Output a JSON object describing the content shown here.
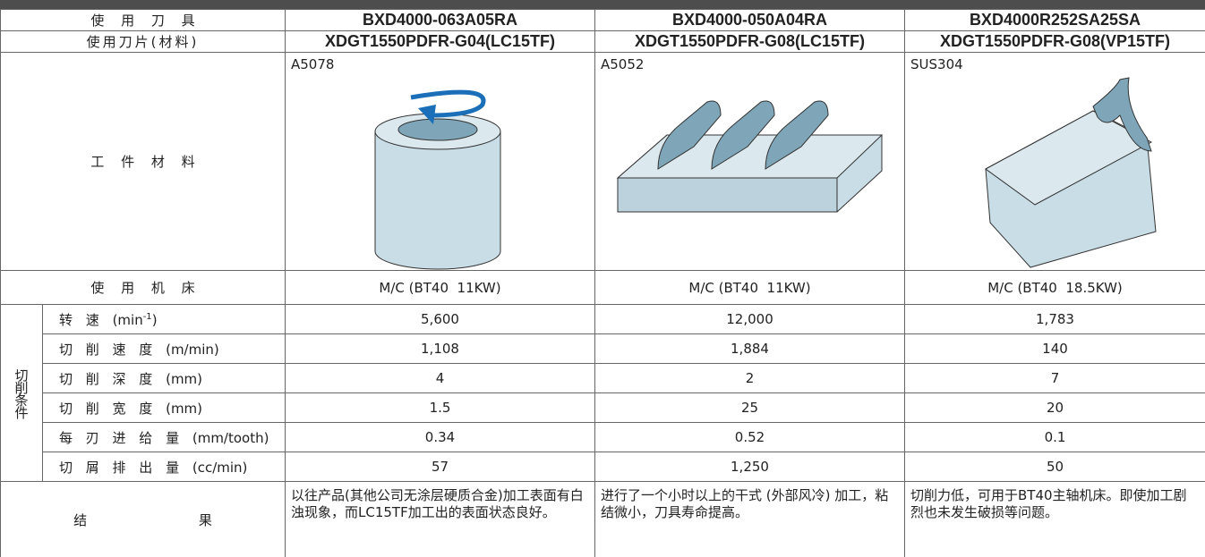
{
  "header": {
    "label": "使 用 刀 具",
    "tools": [
      "BXD4000-063A05RA",
      "BXD4000-050A04RA",
      "BXD4000R252SA25SA"
    ]
  },
  "inserts": {
    "label": "使用刀片(材料)",
    "values": [
      "XDGT1550PDFR-G04(LC15TF)",
      "XDGT1550PDFR-G08(LC15TF)",
      "XDGT1550PDFR-G08(VP15TF)"
    ]
  },
  "workpiece": {
    "label": "工 件 材 料",
    "materials": [
      "A5078",
      "A5052",
      "SUS304"
    ]
  },
  "machine": {
    "label": "使 用 机 床",
    "values": [
      "M/C (BT40  11KW)",
      "M/C (BT40  11KW)",
      "M/C (BT40  18.5KW)"
    ]
  },
  "conditions": {
    "group_label": "切削条件",
    "rows": [
      {
        "label": "转 速",
        "unit": "(min",
        "unit_sup": "-1",
        "unit_end": ")",
        "values": [
          "5,600",
          "12,000",
          "1,783"
        ]
      },
      {
        "label": "切 削 速 度",
        "unit": "(m/min)",
        "values": [
          "1,108",
          "1,884",
          "140"
        ]
      },
      {
        "label": "切 削 深 度",
        "unit": "(mm)",
        "values": [
          "4",
          "2",
          "7"
        ]
      },
      {
        "label": "切 削 宽 度",
        "unit": "(mm)",
        "values": [
          "1.5",
          "25",
          "20"
        ]
      },
      {
        "label": "每 刃 进 给 量",
        "unit": "(mm/tooth)",
        "values": [
          "0.34",
          "0.52",
          "0.1"
        ]
      },
      {
        "label": "切 屑 排 出 量",
        "unit": "(cc/min)",
        "values": [
          "57",
          "1,250",
          "50"
        ]
      }
    ]
  },
  "result": {
    "label": "结 果",
    "values": [
      "以往产品(其他公司无涂层硬质合金)加工表面有白浊现象，而LC15TF加工出的表面状态良好。",
      "进行了一个小时以上的干式 (外部风冷) 加工，粘结微小，刀具寿命提高。",
      "切削力低，可用于BT40主轴机床。即使加工剧烈也未发生破损等问题。"
    ]
  }
}
